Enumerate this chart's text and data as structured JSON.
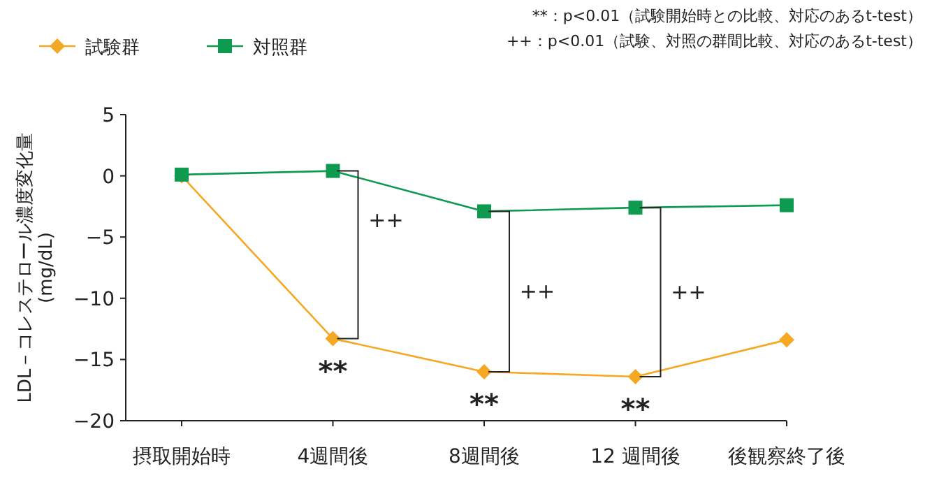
{
  "chart_data": {
    "type": "line",
    "ylabel": "LDL－コレステロール濃度変化量\n(mg/dL)",
    "categories": [
      "摂取開始時",
      "4週間後",
      "8週間後",
      "12 週間後",
      "後観察終了後"
    ],
    "series": [
      {
        "name": "試験群",
        "color": "#f5a823",
        "marker": "diamond",
        "values": [
          0,
          -13.3,
          -16.0,
          -16.4,
          -13.4
        ]
      },
      {
        "name": "対照群",
        "color": "#0e9a4f",
        "marker": "square",
        "values": [
          0.1,
          0.4,
          -2.9,
          -2.6,
          -2.4
        ]
      }
    ],
    "ylim": [
      -20,
      5
    ],
    "yticks": [
      -20,
      -15,
      -10,
      -5,
      0,
      5
    ],
    "grid": false,
    "legend": "top left",
    "line_style": "solid",
    "annotations": [
      {
        "text": "**",
        "x": "4週間後",
        "y": -13.3
      },
      {
        "text": "**",
        "x": "8週間後",
        "y": -16.0
      },
      {
        "text": "**",
        "x": "12 週間後",
        "y": -16.4
      },
      "++",
      "++",
      "++",
      "**：p<0.01（試験開始時との比較、対応のあるt-test）",
      "++：p<0.01（試験、対照の群間比較、対応のあるt-test）"
    ]
  }
}
